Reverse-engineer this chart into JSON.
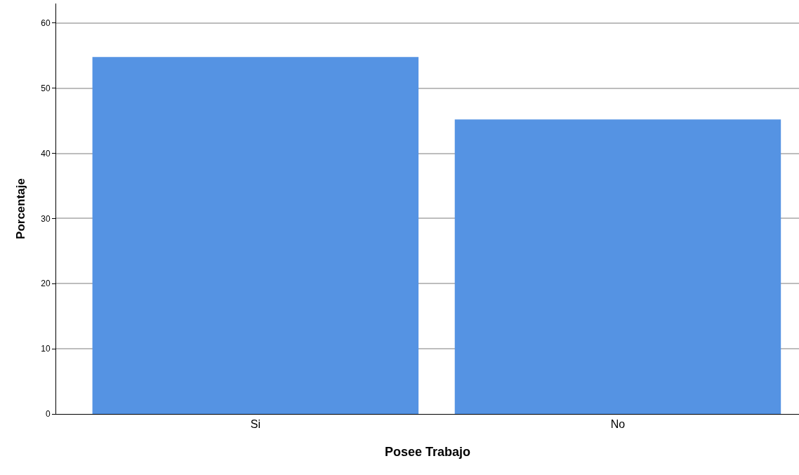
{
  "chart_data": {
    "type": "bar",
    "xlabel": "Posee Trabajo",
    "ylabel": "Porcentaje",
    "categories": [
      "Si",
      "No"
    ],
    "values": [
      54.8,
      45.2
    ],
    "color": "#5593e3",
    "ylim": [
      0,
      63
    ],
    "yticks": [
      0,
      10,
      20,
      30,
      40,
      50,
      60
    ],
    "grid": "y"
  }
}
